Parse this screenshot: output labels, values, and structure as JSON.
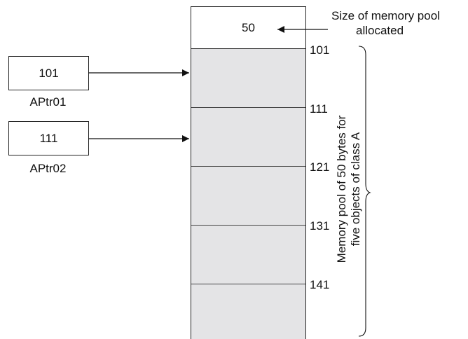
{
  "pool_size": "50",
  "size_annotation": {
    "line1": "Size of memory pool",
    "line2": "allocated"
  },
  "pointers": [
    {
      "value": "101",
      "label": "APtr01"
    },
    {
      "value": "111",
      "label": "APtr02"
    }
  ],
  "addresses": [
    "101",
    "111",
    "121",
    "131",
    "141"
  ],
  "pool_description": {
    "line1": "Memory pool of 50 bytes for",
    "line2": "five objects of class A"
  }
}
